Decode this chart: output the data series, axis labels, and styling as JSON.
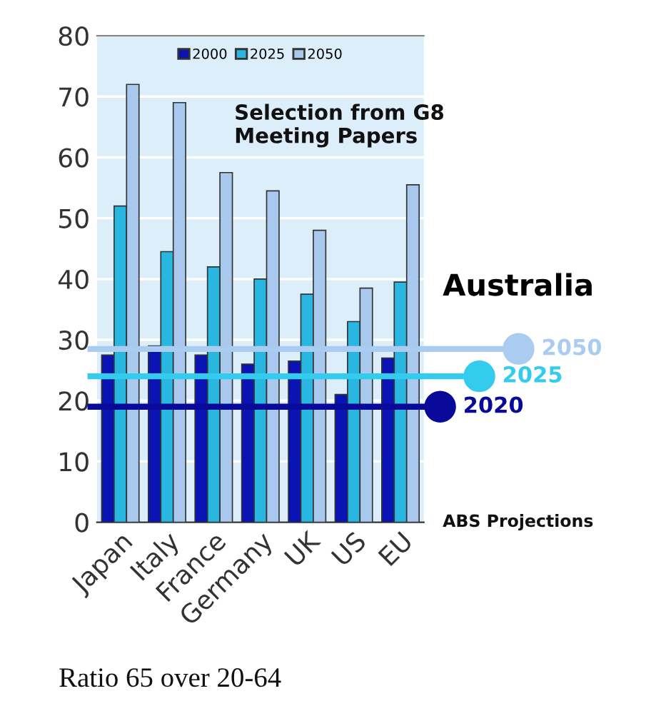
{
  "chart_data": {
    "type": "bar",
    "categories": [
      "Japan",
      "Italy",
      "France",
      "Germany",
      "UK",
      "US",
      "EU"
    ],
    "series": [
      {
        "name": "2000",
        "color": "#0a14b4",
        "values": [
          27.5,
          29,
          27.5,
          26,
          26.5,
          21,
          27
        ]
      },
      {
        "name": "2025",
        "color": "#29b6e0",
        "values": [
          52,
          44.5,
          42,
          40,
          37.5,
          33,
          39.5
        ]
      },
      {
        "name": "2050",
        "color": "#a8c8ee",
        "values": [
          72,
          69,
          57.5,
          54.5,
          48,
          38.5,
          55.5
        ]
      }
    ],
    "ylim": [
      0,
      80
    ],
    "yticks": [
      0,
      10,
      20,
      30,
      40,
      50,
      60,
      70,
      80
    ],
    "grid": "y",
    "legend": "top",
    "ref_lines": [
      {
        "axis": "y",
        "value": 19,
        "color": "#0a0a9a"
      },
      {
        "axis": "y",
        "value": 24,
        "color": "#33ccee"
      },
      {
        "axis": "y",
        "value": 28.5,
        "color": "#aaccf0"
      }
    ],
    "annotations": [
      "Selection from G8 Meeting Papers",
      "Australia",
      "ABS Projections",
      "Ratio 65 over 20-64",
      "2020",
      "2025",
      "2050"
    ]
  }
}
